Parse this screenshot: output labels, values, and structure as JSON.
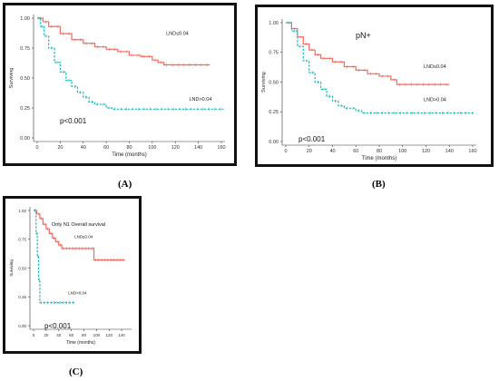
{
  "figure": {
    "panels": [
      {
        "caption": "(A)"
      },
      {
        "caption": "(B)"
      },
      {
        "caption": "(C)"
      }
    ]
  },
  "colors": {
    "red": "#f26b5e",
    "teal": "#22b8b8",
    "axis": "#333333"
  },
  "chart_data": [
    {
      "type": "line",
      "title": "",
      "xlabel": "Time (months)",
      "ylabel": "Surviving",
      "xlim": [
        0,
        160
      ],
      "ylim": [
        0,
        1
      ],
      "xticks": [
        "0",
        "20",
        "40",
        "60",
        "80",
        "100",
        "120",
        "140",
        "160"
      ],
      "yticks": [
        "0.00",
        "0.25",
        "0.50",
        "0.75",
        "1.00"
      ],
      "annotation": "p<0.001",
      "series": [
        {
          "name": "LND≤0.04",
          "color": "#f26b5e",
          "dash": false,
          "points": [
            [
              0,
              1.0
            ],
            [
              5,
              0.97
            ],
            [
              10,
              0.93
            ],
            [
              20,
              0.87
            ],
            [
              30,
              0.82
            ],
            [
              40,
              0.79
            ],
            [
              50,
              0.76
            ],
            [
              60,
              0.74
            ],
            [
              70,
              0.72
            ],
            [
              80,
              0.69
            ],
            [
              90,
              0.68
            ],
            [
              100,
              0.65
            ],
            [
              105,
              0.63
            ],
            [
              110,
              0.61
            ],
            [
              150,
              0.61
            ]
          ]
        },
        {
          "name": "LND>0.04",
          "color": "#22b8b8",
          "dash": true,
          "points": [
            [
              0,
              1.0
            ],
            [
              3,
              0.93
            ],
            [
              6,
              0.85
            ],
            [
              10,
              0.75
            ],
            [
              15,
              0.63
            ],
            [
              20,
              0.55
            ],
            [
              25,
              0.48
            ],
            [
              30,
              0.43
            ],
            [
              35,
              0.38
            ],
            [
              40,
              0.34
            ],
            [
              45,
              0.3
            ],
            [
              50,
              0.28
            ],
            [
              55,
              0.28
            ],
            [
              60,
              0.25
            ],
            [
              65,
              0.24
            ],
            [
              162,
              0.24
            ]
          ]
        }
      ]
    },
    {
      "type": "line",
      "title": "pN+",
      "xlabel": "Time (months)",
      "ylabel": "Surviving",
      "xlim": [
        0,
        160
      ],
      "ylim": [
        0,
        1
      ],
      "xticks": [
        "0",
        "20",
        "40",
        "60",
        "80",
        "100",
        "120",
        "140",
        "160"
      ],
      "yticks": [
        "0.00",
        "0.25",
        "0.50",
        "0.75",
        "1.00"
      ],
      "annotation": "p<0.001",
      "series": [
        {
          "name": "LND≤0.04",
          "color": "#f26b5e",
          "dash": false,
          "points": [
            [
              0,
              1.0
            ],
            [
              5,
              0.95
            ],
            [
              10,
              0.88
            ],
            [
              15,
              0.82
            ],
            [
              20,
              0.77
            ],
            [
              25,
              0.73
            ],
            [
              30,
              0.7
            ],
            [
              40,
              0.67
            ],
            [
              50,
              0.63
            ],
            [
              60,
              0.6
            ],
            [
              70,
              0.57
            ],
            [
              80,
              0.55
            ],
            [
              90,
              0.52
            ],
            [
              95,
              0.48
            ],
            [
              140,
              0.48
            ]
          ]
        },
        {
          "name": "LND>0.04",
          "color": "#22b8b8",
          "dash": true,
          "points": [
            [
              0,
              1.0
            ],
            [
              5,
              0.93
            ],
            [
              10,
              0.8
            ],
            [
              15,
              0.68
            ],
            [
              20,
              0.58
            ],
            [
              25,
              0.5
            ],
            [
              30,
              0.44
            ],
            [
              35,
              0.38
            ],
            [
              40,
              0.34
            ],
            [
              45,
              0.3
            ],
            [
              50,
              0.28
            ],
            [
              60,
              0.26
            ],
            [
              65,
              0.24
            ],
            [
              162,
              0.24
            ]
          ]
        }
      ]
    },
    {
      "type": "line",
      "title": "Only N1  Overall survival",
      "xlabel": "Time (months)",
      "ylabel": "Surviving",
      "xlim": [
        0,
        150
      ],
      "ylim": [
        0,
        1
      ],
      "xticks": [
        "0",
        "20",
        "40",
        "60",
        "80",
        "100",
        "120",
        "140"
      ],
      "yticks": [
        "0.00",
        "0.25",
        "0.50",
        "0.75",
        "1.00"
      ],
      "annotation": "p<0.001",
      "series": [
        {
          "name": "LND≤0.04",
          "color": "#f26b5e",
          "dash": false,
          "points": [
            [
              0,
              1.0
            ],
            [
              5,
              0.97
            ],
            [
              10,
              0.93
            ],
            [
              15,
              0.88
            ],
            [
              20,
              0.84
            ],
            [
              25,
              0.8
            ],
            [
              30,
              0.76
            ],
            [
              35,
              0.73
            ],
            [
              40,
              0.7
            ],
            [
              45,
              0.67
            ],
            [
              95,
              0.67
            ],
            [
              96,
              0.57
            ],
            [
              145,
              0.57
            ]
          ]
        },
        {
          "name": "LND>0.04",
          "color": "#22b8b8",
          "dash": true,
          "points": [
            [
              0,
              1.0
            ],
            [
              4,
              0.8
            ],
            [
              6,
              0.6
            ],
            [
              8,
              0.4
            ],
            [
              10,
              0.2
            ],
            [
              65,
              0.2
            ]
          ]
        }
      ]
    }
  ]
}
